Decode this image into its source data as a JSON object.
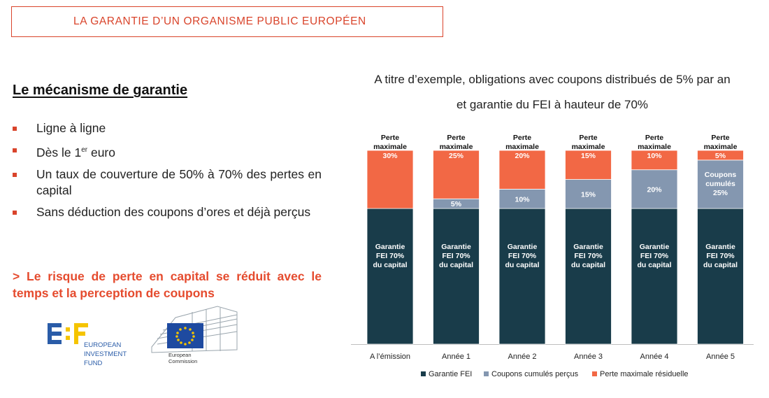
{
  "header": {
    "title": "LA GARANTIE D’UN ORGANISME PUBLIC EUROPÉEN"
  },
  "left": {
    "title": "Le mécanisme de garantie",
    "bullets": [
      {
        "text": "Ligne à ligne"
      },
      {
        "pre": "Dès le 1",
        "sup": "er",
        "post": " euro"
      },
      {
        "text": "Un taux de couverture de 50% à 70% des pertes en capital"
      },
      {
        "text": "Sans déduction des coupons d’ores et déjà perçus"
      }
    ],
    "conclusion": "> Le risque de perte en capital se réduit avec le temps et la perception de coupons"
  },
  "logos": {
    "eif_lines": [
      "EUROPEAN",
      "INVESTMENT",
      "FUND"
    ],
    "ec_lines": [
      "European",
      "Commission"
    ]
  },
  "colors": {
    "accent": "#d9442b",
    "guarantee": "#193c4a",
    "coupons": "#8497b0",
    "loss": "#f26845"
  },
  "chart_data": {
    "type": "bar",
    "stacked": true,
    "title_lines": [
      "A titre d’exemple, obligations avec coupons distribués de 5% par an",
      "et garantie du FEI à hauteur de 70%"
    ],
    "categories": [
      "A l’émission",
      "Année 1",
      "Année 2",
      "Année 3",
      "Année 4",
      "Année 5"
    ],
    "ylim": [
      0,
      100
    ],
    "top_label": [
      "Perte",
      "maximale"
    ],
    "series": [
      {
        "name": "Garantie FEI",
        "values": [
          70,
          70,
          70,
          70,
          70,
          70
        ],
        "labels": [
          "Garantie FEI 70% du capital",
          "Garantie FEI 70% du capital",
          "Garantie FEI 70% du capital",
          "Garantie FEI 70% du capital",
          "Garantie FEI 70% du capital",
          "Garantie FEI 70% du capital"
        ]
      },
      {
        "name": "Coupons cumulés perçus",
        "values": [
          0,
          5,
          10,
          15,
          20,
          25
        ],
        "labels": [
          "",
          "5%",
          "10%",
          "15%",
          "20%",
          "Coupons cumulés 25%"
        ]
      },
      {
        "name": "Perte maximale résiduelle",
        "values": [
          30,
          25,
          20,
          15,
          10,
          5
        ],
        "labels": [
          "30%",
          "25%",
          "20%",
          "15%",
          "10%",
          "5%"
        ]
      }
    ],
    "legend_position": "bottom",
    "grid": false
  }
}
